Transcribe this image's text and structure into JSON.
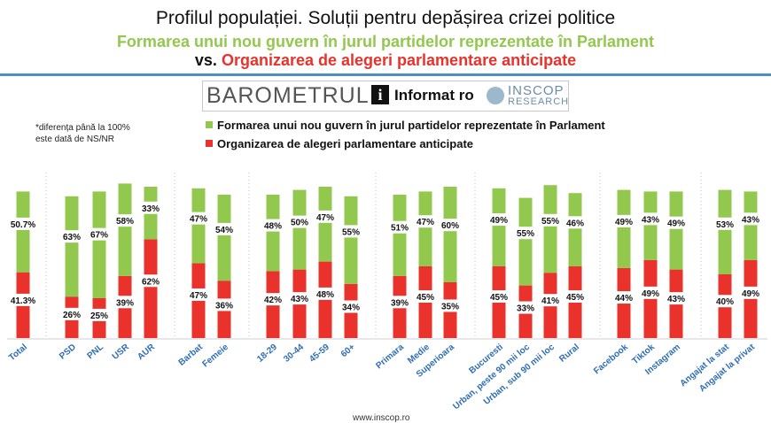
{
  "header": {
    "title": "Profilul populației. Soluții pentru depășirea crizei politice",
    "subtitle_green": "Formarea unui nou guvern în jurul partidelor reprezentate în Parlament",
    "vs_label": "vs.",
    "subtitle_red": "Organizarea de alegeri parlamentare anticipate"
  },
  "logos": {
    "barometrul": "BAROMETRUL",
    "informat_icon": "i",
    "informat": "Informat ro",
    "inscop": "INSCOP",
    "research": "RESEARCH"
  },
  "note": {
    "line1": "*diferența până la 100%",
    "line2": "este dată de NS/NR"
  },
  "footer": {
    "url": "www.inscop.ro"
  },
  "colors": {
    "green": "#92c84d",
    "red": "#e8322b",
    "accent_rule": "#4a90c4",
    "tick_label": "#2e6db5"
  },
  "chart_data": {
    "type": "bar",
    "stacked": true,
    "ylim": [
      0,
      100
    ],
    "categories": [
      "Total",
      "PSD",
      "PNL",
      "USR",
      "AUR",
      "Barbat",
      "Femeie",
      "18-29",
      "30-44",
      "45-59",
      "60+",
      "Primara",
      "Medie",
      "Superioara",
      "Bucuresti",
      "Urban, peste 90 mii loc",
      "Urban, sub 90 mii loc",
      "Rural",
      "Facebook",
      "Tiktok",
      "Instagram",
      "Angajat la stat",
      "Angajat la privat"
    ],
    "groups": [
      [
        0
      ],
      [
        1,
        2,
        3,
        4
      ],
      [
        5,
        6
      ],
      [
        7,
        8,
        9,
        10
      ],
      [
        11,
        12,
        13
      ],
      [
        14,
        15,
        16,
        17
      ],
      [
        18,
        19,
        20
      ],
      [
        21,
        22
      ]
    ],
    "series": [
      {
        "name": "Organizarea de alegeri parlamentare anticipate",
        "color": "#e8322b",
        "values": [
          41.3,
          26,
          25,
          39,
          62,
          47,
          36,
          42,
          43,
          48,
          34,
          39,
          45,
          35,
          45,
          33,
          41,
          45,
          44,
          49,
          43,
          40,
          49
        ],
        "labels": [
          "41.3%",
          "26%",
          "25%",
          "39%",
          "62%",
          "47%",
          "36%",
          "42%",
          "43%",
          "48%",
          "34%",
          "39%",
          "45%",
          "35%",
          "45%",
          "33%",
          "41%",
          "45%",
          "44%",
          "49%",
          "43%",
          "40%",
          "49%"
        ]
      },
      {
        "name": "Formarea unui nou guvern în jurul partidelor reprezentate în Parlament",
        "color": "#92c84d",
        "values": [
          50.7,
          63,
          67,
          58,
          33,
          47,
          54,
          48,
          50,
          47,
          55,
          51,
          47,
          60,
          49,
          55,
          55,
          46,
          49,
          43,
          49,
          53,
          43
        ],
        "labels": [
          "50.7%",
          "63%",
          "67%",
          "58%",
          "33%",
          "47%",
          "54%",
          "48%",
          "50%",
          "47%",
          "55%",
          "51%",
          "47%",
          "60%",
          "49%",
          "55%",
          "55%",
          "46%",
          "49%",
          "43%",
          "49%",
          "53%",
          "43%"
        ]
      }
    ]
  }
}
